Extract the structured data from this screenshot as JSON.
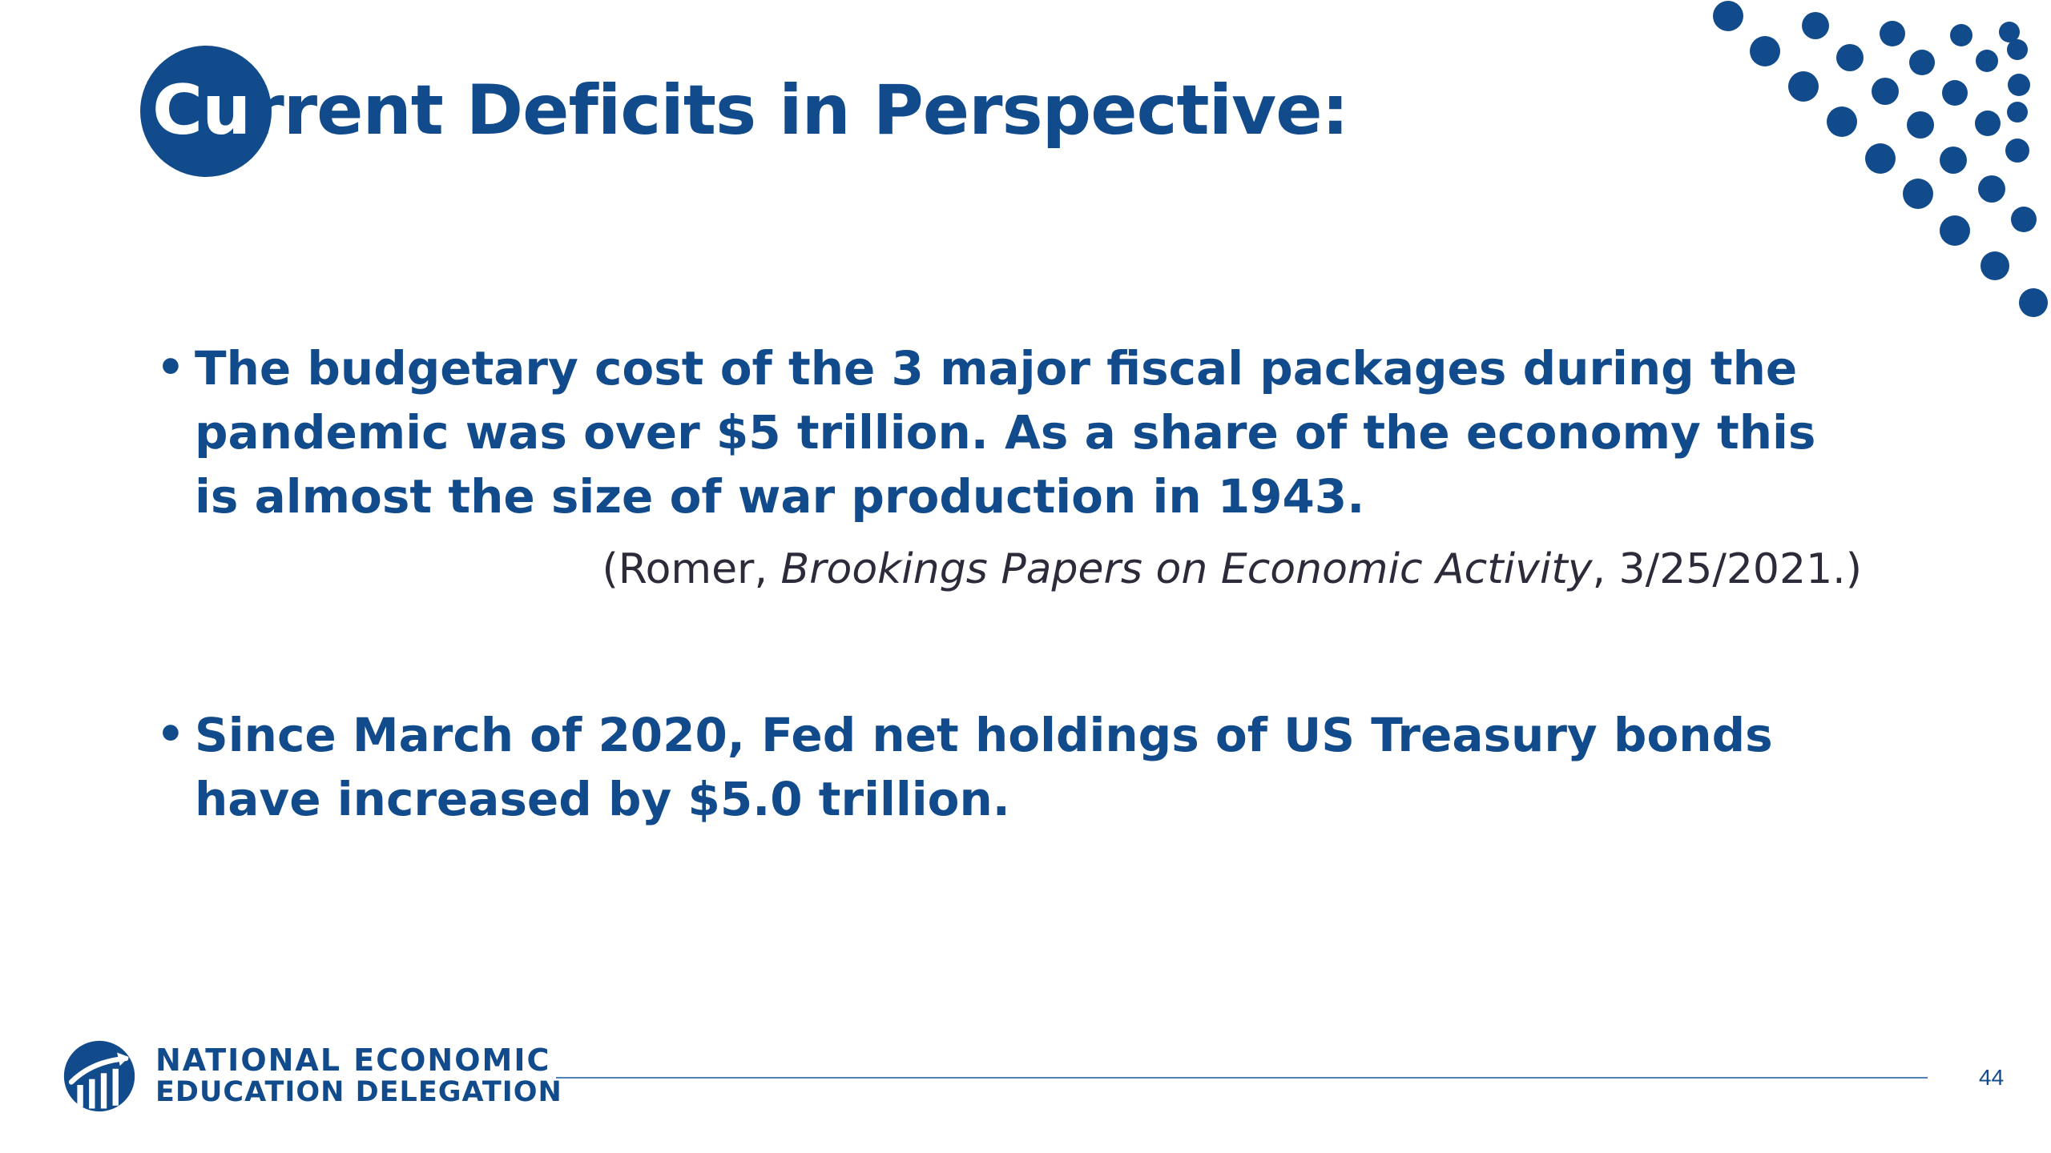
{
  "slide": {
    "title_part_on_circle": "Cu",
    "title_rest": "rrent Deficits in Perspective:",
    "bullets": [
      {
        "text": "The budgetary cost of the 3 major fiscal packages during the pandemic was over $5 trillion.  As a share of the economy this is almost the size of war production in 1943."
      },
      {
        "text": "Since March of 2020, Fed net holdings of US Treasury bonds have increased by $5.0 trillion."
      }
    ],
    "bullet_symbol": "•",
    "citation": {
      "open": "(Romer, ",
      "source_italic": "Brookings Papers on Economic Activity",
      "close": ", 3/25/2021.)"
    },
    "footer": {
      "org_line1": "NATIONAL ECONOMIC",
      "org_line2": "EDUCATION DELEGATION",
      "page_number": "44"
    },
    "colors": {
      "brand_blue": "#124b8c",
      "text_dark": "#2b2b3a",
      "rule_blue": "#4f83b8"
    },
    "icons": [
      "decorative-dot-pattern",
      "nxed-logo-icon"
    ]
  }
}
